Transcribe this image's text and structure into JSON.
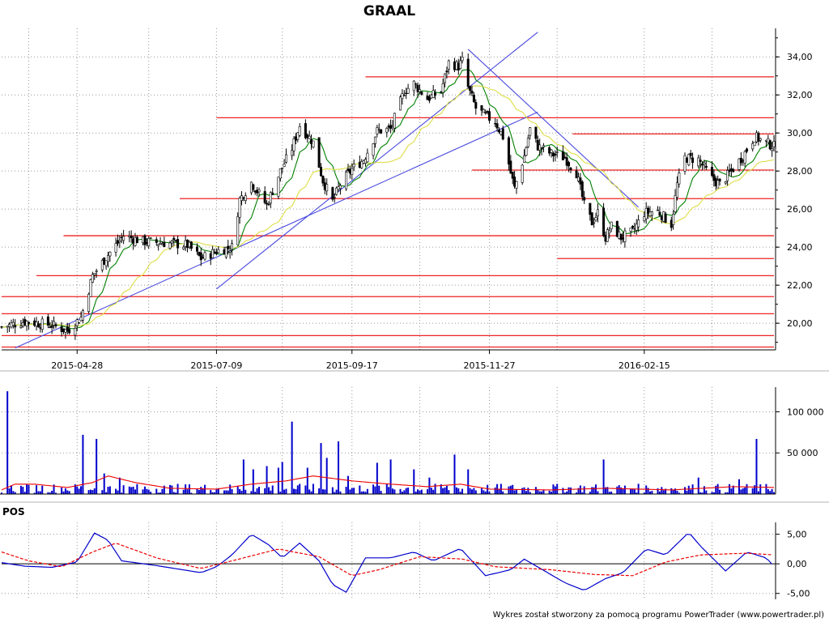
{
  "chart_data": [
    {
      "type": "candlestick",
      "title": "GRAAL",
      "x_tick_labels": [
        "2015-04-28",
        "2015-07-09",
        "2015-09-17",
        "2015-11-27",
        "2016-02-15"
      ],
      "y_tick_labels": [
        "20,00",
        "22,00",
        "24,00",
        "26,00",
        "28,00",
        "30,00",
        "32,00",
        "34,00"
      ],
      "y_tick_values": [
        20,
        22,
        24,
        26,
        28,
        30,
        32,
        34
      ],
      "ylim": [
        18.6,
        35.5
      ],
      "grid": true,
      "price_path": [
        [
          "2015-03-20",
          19.8
        ],
        [
          "2015-04-01",
          20.1
        ],
        [
          "2015-04-15",
          19.9
        ],
        [
          "2015-04-23",
          19.6
        ],
        [
          "2015-04-30",
          20.3
        ],
        [
          "2015-05-06",
          22.5
        ],
        [
          "2015-05-14",
          23.6
        ],
        [
          "2015-05-22",
          24.6
        ],
        [
          "2015-06-01",
          24.3
        ],
        [
          "2015-06-15",
          24.2
        ],
        [
          "2015-06-24",
          24.1
        ],
        [
          "2015-07-01",
          23.4
        ],
        [
          "2015-07-09",
          23.8
        ],
        [
          "2015-07-17",
          24.0
        ],
        [
          "2015-07-21",
          26.5
        ],
        [
          "2015-07-27",
          27.4
        ],
        [
          "2015-08-04",
          26.2
        ],
        [
          "2015-08-11",
          28.0
        ],
        [
          "2015-08-17",
          29.2
        ],
        [
          "2015-08-21",
          30.4
        ],
        [
          "2015-08-28",
          29.5
        ],
        [
          "2015-09-02",
          27.5
        ],
        [
          "2015-09-07",
          26.4
        ],
        [
          "2015-09-11",
          27.3
        ],
        [
          "2015-09-17",
          28.1
        ],
        [
          "2015-09-23",
          28.6
        ],
        [
          "2015-09-30",
          30.1
        ],
        [
          "2015-10-07",
          30.2
        ],
        [
          "2015-10-14",
          32.2
        ],
        [
          "2015-10-19",
          32.6
        ],
        [
          "2015-10-26",
          31.8
        ],
        [
          "2015-11-02",
          32.2
        ],
        [
          "2015-11-06",
          33.7
        ],
        [
          "2015-11-11",
          33.5
        ],
        [
          "2015-11-13",
          33.8
        ],
        [
          "2015-11-16",
          32.4
        ],
        [
          "2015-11-20",
          31.3
        ],
        [
          "2015-11-25",
          30.9
        ],
        [
          "2015-11-30",
          30.6
        ],
        [
          "2015-12-04",
          29.8
        ],
        [
          "2015-12-08",
          27.9
        ],
        [
          "2015-12-10",
          27.1
        ],
        [
          "2015-12-15",
          28.8
        ],
        [
          "2015-12-18",
          30.2
        ],
        [
          "2015-12-22",
          29.3
        ],
        [
          "2015-12-29",
          28.9
        ],
        [
          "2016-01-05",
          28.7
        ],
        [
          "2016-01-11",
          27.9
        ],
        [
          "2016-01-15",
          26.2
        ],
        [
          "2016-01-19",
          25.3
        ],
        [
          "2016-01-22",
          25.8
        ],
        [
          "2016-01-26",
          24.5
        ],
        [
          "2016-01-29",
          25.1
        ],
        [
          "2016-02-03",
          24.5
        ],
        [
          "2016-02-09",
          24.8
        ],
        [
          "2016-02-15",
          25.8
        ],
        [
          "2016-02-22",
          25.9
        ],
        [
          "2016-02-29",
          25.2
        ],
        [
          "2016-03-03",
          27.3
        ],
        [
          "2016-03-07",
          28.7
        ],
        [
          "2016-03-14",
          28.6
        ],
        [
          "2016-03-21",
          27.6
        ],
        [
          "2016-03-25",
          27.3
        ],
        [
          "2016-03-31",
          28.0
        ],
        [
          "2016-04-06",
          28.8
        ],
        [
          "2016-04-12",
          29.8
        ],
        [
          "2016-04-18",
          29.5
        ],
        [
          "2016-04-22",
          29.3
        ]
      ],
      "moving_averages": [
        {
          "color": "#008000",
          "period": 10
        },
        {
          "color": "#dddd44",
          "period": 30
        }
      ],
      "horizontal_levels": [
        {
          "y": 18.75,
          "from": "2015-03-20",
          "to": "2016-04-22"
        },
        {
          "y": 19.35,
          "from": "2015-03-20",
          "to": "2016-04-22"
        },
        {
          "y": 20.5,
          "from": "2015-03-20",
          "to": "2016-04-22"
        },
        {
          "y": 21.4,
          "from": "2015-03-20",
          "to": "2016-04-22"
        },
        {
          "y": 22.5,
          "from": "2015-04-07",
          "to": "2016-04-22"
        },
        {
          "y": 24.6,
          "from": "2015-04-21",
          "to": "2016-04-22"
        },
        {
          "y": 26.55,
          "from": "2015-06-20",
          "to": "2016-04-22"
        },
        {
          "y": 28.05,
          "from": "2015-11-18",
          "to": "2016-04-22"
        },
        {
          "y": 30.8,
          "from": "2015-07-09",
          "to": "2016-04-22"
        },
        {
          "y": 32.95,
          "from": "2015-09-24",
          "to": "2016-04-22"
        },
        {
          "y": 29.95,
          "from": "2016-01-09",
          "to": "2016-04-22"
        },
        {
          "y": 23.4,
          "from": "2016-01-01",
          "to": "2016-04-22"
        }
      ],
      "trend_lines": [
        {
          "from": [
            "2015-03-27",
            18.7
          ],
          "to": [
            "2015-12-22",
            31.1
          ]
        },
        {
          "from": [
            "2015-07-09",
            21.8
          ],
          "to": [
            "2015-12-22",
            35.3
          ]
        },
        {
          "from": [
            "2015-11-16",
            34.4
          ],
          "to": [
            "2016-02-12",
            26.1
          ]
        },
        {
          "from": [
            "2016-02-13",
            31.1
          ],
          "to": [
            "2016-02-13",
            31.1
          ]
        }
      ]
    },
    {
      "type": "bar",
      "series_color": "#0000cc",
      "average_color": "#ee0000",
      "y_tick_labels": [
        "50 000",
        "100 000"
      ],
      "y_tick_values": [
        50000,
        100000
      ],
      "ylim": [
        0,
        130000
      ],
      "volumes": [
        [
          "2015-03-24",
          125000
        ],
        [
          "2015-05-02",
          72000
        ],
        [
          "2015-05-09",
          67000
        ],
        [
          "2015-05-13",
          25000
        ],
        [
          "2015-05-21",
          20000
        ],
        [
          "2015-07-24",
          42000
        ],
        [
          "2015-07-29",
          30000
        ],
        [
          "2015-08-05",
          34000
        ],
        [
          "2015-08-10",
          32000
        ],
        [
          "2015-08-13",
          39000
        ],
        [
          "2015-08-17",
          88000
        ],
        [
          "2015-08-26",
          32000
        ],
        [
          "2015-09-02",
          62000
        ],
        [
          "2015-09-05",
          44000
        ],
        [
          "2015-09-11",
          64000
        ],
        [
          "2015-09-16",
          22000
        ],
        [
          "2015-10-01",
          38000
        ],
        [
          "2015-10-08",
          42000
        ],
        [
          "2015-10-20",
          30000
        ],
        [
          "2015-10-28",
          20000
        ],
        [
          "2015-11-10",
          48000
        ],
        [
          "2015-11-16",
          30000
        ],
        [
          "2016-01-26",
          42000
        ],
        [
          "2016-03-15",
          20000
        ],
        [
          "2016-04-14",
          67000
        ],
        [
          "2016-04-05",
          18000
        ]
      ],
      "volume_average_shape": [
        [
          "2015-03-20",
          5000
        ],
        [
          "2015-03-27",
          12000
        ],
        [
          "2015-04-06",
          12000
        ],
        [
          "2015-04-23",
          8000
        ],
        [
          "2015-05-06",
          14000
        ],
        [
          "2015-05-14",
          22000
        ],
        [
          "2015-05-28",
          14000
        ],
        [
          "2015-06-15",
          7000
        ],
        [
          "2015-07-09",
          6000
        ],
        [
          "2015-07-27",
          12000
        ],
        [
          "2015-08-14",
          16000
        ],
        [
          "2015-08-28",
          22000
        ],
        [
          "2015-09-17",
          16000
        ],
        [
          "2015-10-07",
          12000
        ],
        [
          "2015-10-26",
          9000
        ],
        [
          "2015-11-12",
          12000
        ],
        [
          "2015-11-27",
          6000
        ],
        [
          "2015-12-29",
          5000
        ],
        [
          "2016-01-26",
          7000
        ],
        [
          "2016-02-29",
          5000
        ],
        [
          "2016-04-01",
          9000
        ],
        [
          "2016-04-22",
          8000
        ]
      ]
    },
    {
      "type": "line",
      "label": "POS",
      "y_tick_labels": [
        "-5,00",
        "0,00",
        "5,00"
      ],
      "y_tick_values": [
        -5,
        0,
        5
      ],
      "ylim": [
        -6,
        7
      ],
      "zero_line": true,
      "series": [
        {
          "color": "#0000cc",
          "style": "solid",
          "points": [
            [
              "2015-03-20",
              0.2
            ],
            [
              "2015-04-01",
              -0.4
            ],
            [
              "2015-04-15",
              -0.6
            ],
            [
              "2015-04-28",
              0.3
            ],
            [
              "2015-05-07",
              5.2
            ],
            [
              "2015-05-14",
              4.0
            ],
            [
              "2015-05-21",
              0.5
            ],
            [
              "2015-06-08",
              -0.3
            ],
            [
              "2015-07-01",
              -1.5
            ],
            [
              "2015-07-09",
              -0.5
            ],
            [
              "2015-07-17",
              1.5
            ],
            [
              "2015-07-27",
              5.0
            ],
            [
              "2015-08-05",
              3.2
            ],
            [
              "2015-08-12",
              1.0
            ],
            [
              "2015-08-21",
              3.5
            ],
            [
              "2015-08-31",
              0.5
            ],
            [
              "2015-09-07",
              -3.5
            ],
            [
              "2015-09-14",
              -4.8
            ],
            [
              "2015-09-24",
              1.0
            ],
            [
              "2015-10-07",
              1.0
            ],
            [
              "2015-10-19",
              2.0
            ],
            [
              "2015-10-29",
              0.5
            ],
            [
              "2015-11-12",
              2.6
            ],
            [
              "2015-11-25",
              -2.0
            ],
            [
              "2015-12-08",
              -1.0
            ],
            [
              "2015-12-15",
              0.8
            ],
            [
              "2016-01-05",
              -3.2
            ],
            [
              "2016-01-15",
              -4.5
            ],
            [
              "2016-01-26",
              -2.5
            ],
            [
              "2016-02-04",
              -1.5
            ],
            [
              "2016-02-16",
              2.5
            ],
            [
              "2016-02-26",
              1.5
            ],
            [
              "2016-03-09",
              5.3
            ],
            [
              "2016-03-15",
              3.0
            ],
            [
              "2016-03-28",
              -1.2
            ],
            [
              "2016-04-08",
              2.0
            ],
            [
              "2016-04-18",
              1.0
            ],
            [
              "2016-04-22",
              -0.4
            ]
          ]
        },
        {
          "color": "#ee0000",
          "style": "dashed",
          "points": [
            [
              "2015-03-20",
              2.0
            ],
            [
              "2015-04-03",
              0.5
            ],
            [
              "2015-04-20",
              -0.5
            ],
            [
              "2015-05-06",
              2.0
            ],
            [
              "2015-05-18",
              3.5
            ],
            [
              "2015-06-08",
              1.0
            ],
            [
              "2015-07-01",
              -0.8
            ],
            [
              "2015-07-17",
              0.5
            ],
            [
              "2015-08-10",
              2.5
            ],
            [
              "2015-08-31",
              1.2
            ],
            [
              "2015-09-17",
              -2.0
            ],
            [
              "2015-10-01",
              -1.0
            ],
            [
              "2015-10-22",
              1.2
            ],
            [
              "2015-11-13",
              0.8
            ],
            [
              "2015-11-30",
              -0.5
            ],
            [
              "2015-12-29",
              -1.0
            ],
            [
              "2016-01-20",
              -1.8
            ],
            [
              "2016-02-09",
              -2.0
            ],
            [
              "2016-02-26",
              0.3
            ],
            [
              "2016-03-15",
              1.5
            ],
            [
              "2016-04-08",
              1.8
            ],
            [
              "2016-04-22",
              1.5
            ]
          ]
        }
      ]
    }
  ],
  "footer": "Wykres został stworzony za pomocą programu PowerTrader (www.powertrader.pl)"
}
